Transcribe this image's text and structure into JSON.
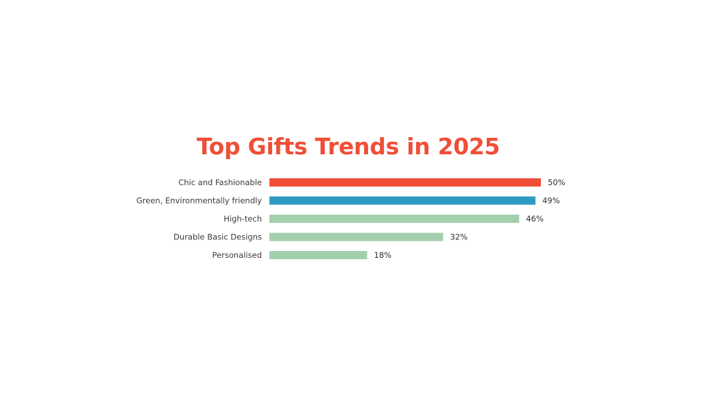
{
  "colors": {
    "title": "#f04e37",
    "highlight": "#f04e37",
    "secondary": "#2e9ac2",
    "default": "#a3cfad",
    "background": "#ffffff"
  },
  "chart_data": {
    "type": "bar",
    "orientation": "horizontal",
    "title": "Top Gifts Trends in 2025",
    "categories": [
      "Chic and Fashionable",
      "Green, Environmentally friendly",
      "High-tech",
      "Durable Basic Designs",
      "Personalised"
    ],
    "values": [
      50,
      49,
      46,
      32,
      18
    ],
    "value_labels": [
      "50%",
      "49%",
      "46%",
      "32%",
      "18%"
    ],
    "bar_colors": [
      "#f04e37",
      "#2e9ac2",
      "#a3cfad",
      "#a3cfad",
      "#a3cfad"
    ],
    "unit": "%",
    "xlim": [
      0,
      50
    ],
    "grid": false,
    "legend": "none"
  }
}
